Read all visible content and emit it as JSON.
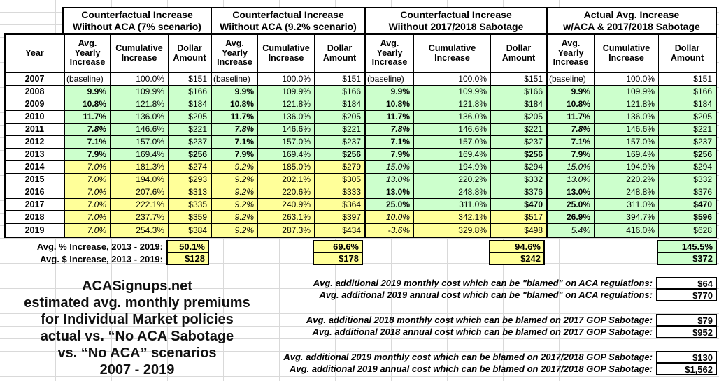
{
  "sheet": {
    "groups": [
      {
        "l1": "Counterfactual Increase",
        "l2": "Wiithout ACA (7% scenario)"
      },
      {
        "l1": "Counterfactual Increase",
        "l2": "Wiithout ACA (9.2% scenario)"
      },
      {
        "l1": "Counterfactual Increase",
        "l2": "Wiithout 2017/2018 Sabotage"
      },
      {
        "l1": "Actual Avg. Increase",
        "l2": "w/ACA & 2017/2018 Sabotage"
      }
    ],
    "col_headers": {
      "year": "Year",
      "avg": "Avg. Yearly Increase",
      "cum": "Cumulative Increase",
      "amt": "Dollar Amount"
    },
    "rows": [
      {
        "year": "2007",
        "bg": [
          "w",
          "w",
          "w",
          "w"
        ],
        "cells": [
          "(baseline)",
          "100.0%",
          "$151",
          "(baseline)",
          "100.0%",
          "$151",
          "(baseline)",
          "100.0%",
          "$151",
          "(baseline)",
          "100.0%",
          "$151"
        ],
        "styles": [
          "",
          "",
          "",
          "",
          "",
          "",
          "",
          "",
          "",
          "",
          "",
          ""
        ]
      },
      {
        "year": "2008",
        "bg": [
          "g",
          "g",
          "g",
          "g"
        ],
        "cells": [
          "9.9%",
          "109.9%",
          "$166",
          "9.9%",
          "109.9%",
          "$166",
          "9.9%",
          "109.9%",
          "$166",
          "9.9%",
          "109.9%",
          "$166"
        ],
        "styles": [
          "b",
          "",
          "",
          "b",
          "",
          "",
          "b",
          "",
          "",
          "b",
          "",
          ""
        ]
      },
      {
        "year": "2009",
        "bg": [
          "g",
          "g",
          "g",
          "g"
        ],
        "cells": [
          "10.8%",
          "121.8%",
          "$184",
          "10.8%",
          "121.8%",
          "$184",
          "10.8%",
          "121.8%",
          "$184",
          "10.8%",
          "121.8%",
          "$184"
        ],
        "styles": [
          "b",
          "",
          "",
          "b",
          "",
          "",
          "b",
          "",
          "",
          "b",
          "",
          ""
        ]
      },
      {
        "year": "2010",
        "bg": [
          "g",
          "g",
          "g",
          "g"
        ],
        "cells": [
          "11.7%",
          "136.0%",
          "$205",
          "11.7%",
          "136.0%",
          "$205",
          "11.7%",
          "136.0%",
          "$205",
          "11.7%",
          "136.0%",
          "$205"
        ],
        "styles": [
          "b",
          "",
          "",
          "b",
          "",
          "",
          "b",
          "",
          "",
          "b",
          "",
          ""
        ]
      },
      {
        "year": "2011",
        "bg": [
          "g",
          "g",
          "g",
          "g"
        ],
        "cells": [
          "7.8%",
          "146.6%",
          "$221",
          "7.8%",
          "146.6%",
          "$221",
          "7.8%",
          "146.6%",
          "$221",
          "7.8%",
          "146.6%",
          "$221"
        ],
        "styles": [
          "bi",
          "",
          "",
          "bi",
          "",
          "",
          "bi",
          "",
          "",
          "bi",
          "",
          ""
        ]
      },
      {
        "year": "2012",
        "bg": [
          "g",
          "g",
          "g",
          "g"
        ],
        "cells": [
          "7.1%",
          "157.0%",
          "$237",
          "7.1%",
          "157.0%",
          "$237",
          "7.1%",
          "157.0%",
          "$237",
          "7.1%",
          "157.0%",
          "$237"
        ],
        "styles": [
          "b",
          "",
          "",
          "b",
          "",
          "",
          "b",
          "",
          "",
          "b",
          "",
          ""
        ]
      },
      {
        "year": "2013",
        "bg": [
          "g",
          "g",
          "g",
          "g"
        ],
        "cells": [
          "7.9%",
          "169.4%",
          "$256",
          "7.9%",
          "169.4%",
          "$256",
          "7.9%",
          "169.4%",
          "$256",
          "7.9%",
          "169.4%",
          "$256"
        ],
        "styles": [
          "b",
          "",
          "b",
          "b",
          "",
          "b",
          "b",
          "",
          "b",
          "b",
          "",
          "b"
        ]
      },
      {
        "year": "2014",
        "bg": [
          "y",
          "y",
          "g",
          "g"
        ],
        "cells": [
          "7.0%",
          "181.3%",
          "$274",
          "9.2%",
          "185.0%",
          "$279",
          "15.0%",
          "194.9%",
          "$294",
          "15.0%",
          "194.9%",
          "$294"
        ],
        "styles": [
          "i",
          "",
          "",
          "i",
          "",
          "",
          "i",
          "",
          "",
          "i",
          "",
          ""
        ]
      },
      {
        "year": "2015",
        "bg": [
          "y",
          "y",
          "g",
          "g"
        ],
        "cells": [
          "7.0%",
          "194.0%",
          "$293",
          "9.2%",
          "202.1%",
          "$305",
          "13.0%",
          "220.2%",
          "$332",
          "13.0%",
          "220.2%",
          "$332"
        ],
        "styles": [
          "i",
          "",
          "",
          "i",
          "",
          "",
          "i",
          "",
          "",
          "i",
          "",
          ""
        ]
      },
      {
        "year": "2016",
        "bg": [
          "y",
          "y",
          "g",
          "g"
        ],
        "cells": [
          "7.0%",
          "207.6%",
          "$313",
          "9.2%",
          "220.6%",
          "$333",
          "13.0%",
          "248.8%",
          "$376",
          "13.0%",
          "248.8%",
          "$376"
        ],
        "styles": [
          "i",
          "",
          "",
          "i",
          "",
          "",
          "b",
          "",
          "",
          "b",
          "",
          ""
        ]
      },
      {
        "year": "2017",
        "bg": [
          "y",
          "y",
          "g",
          "g"
        ],
        "cells": [
          "7.0%",
          "222.1%",
          "$335",
          "9.2%",
          "240.9%",
          "$364",
          "25.0%",
          "311.0%",
          "$470",
          "25.0%",
          "311.0%",
          "$470"
        ],
        "styles": [
          "i",
          "",
          "",
          "i",
          "",
          "",
          "b",
          "",
          "b",
          "b",
          "",
          "b"
        ]
      },
      {
        "year": "2018",
        "bg": [
          "y",
          "y",
          "y",
          "g"
        ],
        "cells": [
          "7.0%",
          "237.7%",
          "$359",
          "9.2%",
          "263.1%",
          "$397",
          "10.0%",
          "342.1%",
          "$517",
          "26.9%",
          "394.7%",
          "$596"
        ],
        "styles": [
          "i",
          "",
          "",
          "i",
          "",
          "",
          "i",
          "",
          "",
          "b",
          "",
          "b"
        ]
      },
      {
        "year": "2019",
        "bg": [
          "y",
          "y",
          "y",
          "g"
        ],
        "cells": [
          "7.0%",
          "254.3%",
          "$384",
          "9.2%",
          "287.3%",
          "$434",
          "-3.6%",
          "329.8%",
          "$498",
          "5.4%",
          "416.0%",
          "$628"
        ],
        "styles": [
          "i",
          "",
          "",
          "i",
          "",
          "",
          "i",
          "",
          "",
          "i",
          "",
          ""
        ]
      }
    ],
    "summary": {
      "rows": [
        {
          "label": "Avg. % Increase, 2013 - 2019:",
          "values": [
            "50.1%",
            "69.6%",
            "94.6%",
            "145.5%"
          ],
          "bg": [
            "y",
            "y",
            "y",
            "g"
          ]
        },
        {
          "label": "Avg. $ Increase, 2013 - 2019:",
          "values": [
            "$128",
            "$178",
            "$242",
            "$372"
          ],
          "bg": [
            "y",
            "y",
            "y",
            "g"
          ]
        }
      ]
    }
  },
  "brand": {
    "lines": [
      "ACASignups.net",
      "estimated avg. monthly premiums",
      "for Individual Market policies",
      "actual vs. “No ACA Sabotage",
      "vs. “No ACA” scenarios",
      "2007 - 2019"
    ]
  },
  "notes": {
    "items": [
      {
        "label": "Avg. additional 2019 monthly cost which can be \"blamed\" on ACA regulations:",
        "value": "$64"
      },
      {
        "label": "Avg. additional 2019 annual cost which can be \"blamed\" on ACA regulations:",
        "value": "$770"
      },
      {
        "label": "Avg. additional 2018 monthly cost which can be blamed on 2017 GOP Sabotage:",
        "value": "$79"
      },
      {
        "label": "Avg. additional 2018 annual cost which can be blamed on 2017 GOP Sabotage:",
        "value": "$952"
      },
      {
        "label": "Avg. additional 2019 monthly cost which can be blamed on 2017/2018 GOP Sabotage:",
        "value": "$130"
      },
      {
        "label": "Avg. additional 2019 annual cost which can be blamed on 2017/2018 GOP Sabotage:",
        "value": "$1,562"
      }
    ]
  },
  "colors": {
    "green": "#ccffcc",
    "yellow": "#ffff99",
    "border": "#000000",
    "gridline": "#d9d9d9"
  }
}
